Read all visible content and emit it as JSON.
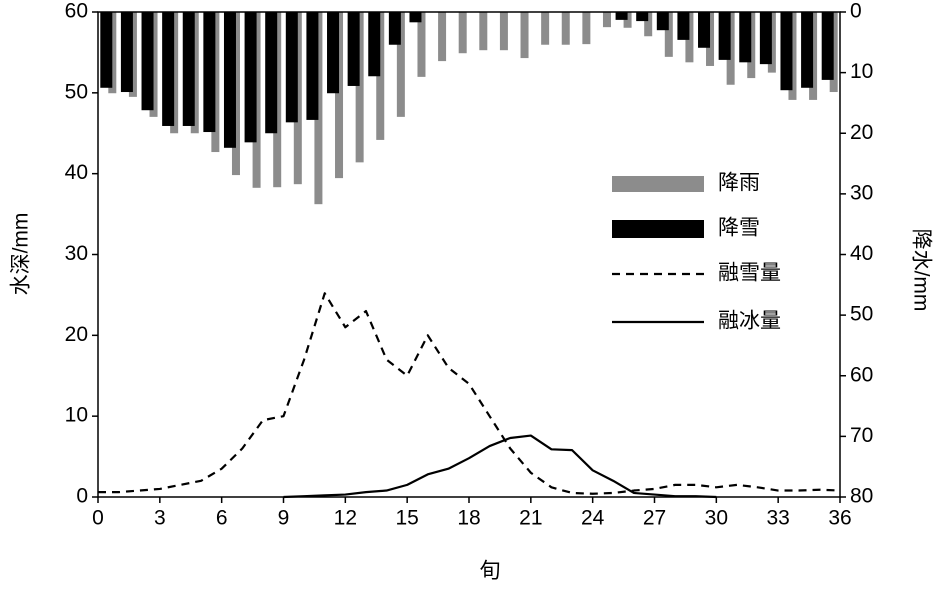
{
  "chart_data": {
    "type": "bar-line",
    "xlabel": "旬",
    "ylabel": "水深/mm",
    "y2label": "降水/mm",
    "xlim": [
      0,
      36
    ],
    "xticks": [
      0,
      3,
      6,
      9,
      12,
      15,
      18,
      21,
      24,
      27,
      30,
      33,
      36
    ],
    "ylim": [
      0,
      60
    ],
    "yticks": [
      0,
      10,
      20,
      30,
      40,
      50,
      60
    ],
    "y2lim": [
      0,
      80
    ],
    "y2ticks": [
      0,
      10,
      20,
      30,
      40,
      50,
      60,
      70,
      80
    ],
    "y2_inverted": true,
    "series": [
      {
        "name": "降雨",
        "type": "bar",
        "axis": "y2",
        "color": "#8c8c8c",
        "x": [
          0.5,
          1.5,
          2.5,
          3.5,
          4.5,
          5.5,
          6.5,
          7.5,
          8.5,
          9.5,
          10.5,
          11.5,
          12.5,
          13.5,
          14.5,
          15.5,
          16.5,
          17.5,
          18.5,
          19.5,
          20.5,
          21.5,
          22.5,
          23.5,
          24.5,
          25.5,
          26.5,
          27.5,
          28.5,
          29.5,
          30.5,
          31.5,
          32.5,
          33.5,
          34.5,
          35.5
        ],
        "values": [
          13.4,
          14,
          17.3,
          20,
          20,
          23.1,
          26.9,
          29,
          28.9,
          28.4,
          31.7,
          27.4,
          24.8,
          21.1,
          17.3,
          10.7,
          8.1,
          6.8,
          6.3,
          6.3,
          7.6,
          5.4,
          5.4,
          5.3,
          2.5,
          2.6,
          4,
          7.4,
          8.3,
          8.9,
          12,
          10.9,
          10,
          14.5,
          14.5,
          13.2
        ]
      },
      {
        "name": "降雪",
        "type": "bar",
        "axis": "y2",
        "color": "#000000",
        "x": [
          0.5,
          1.5,
          2.5,
          3.5,
          4.5,
          5.5,
          6.5,
          7.5,
          8.5,
          9.5,
          10.5,
          11.5,
          12.5,
          13.5,
          14.5,
          15.5,
          16.5,
          17.5,
          18.5,
          19.5,
          20.5,
          21.5,
          22.5,
          23.5,
          24.5,
          25.5,
          26.5,
          27.5,
          28.5,
          29.5,
          30.5,
          31.5,
          32.5,
          33.5,
          34.5,
          35.5
        ],
        "values": [
          12.5,
          13.2,
          16.2,
          18.8,
          18.8,
          19.8,
          22.4,
          21.5,
          20,
          18.2,
          17.8,
          13.4,
          12.2,
          10.6,
          5.4,
          1.7,
          0,
          0,
          0,
          0,
          0,
          0,
          0,
          0,
          0,
          1.3,
          1.5,
          3,
          4.6,
          5.9,
          7.9,
          8.3,
          8.6,
          12.9,
          12.5,
          11.2
        ]
      },
      {
        "name": "融雪量",
        "type": "line",
        "dash": "8 6",
        "color": "#000000",
        "x": [
          0,
          1,
          2,
          3,
          4,
          5,
          6,
          7,
          8,
          9,
          10,
          11,
          12,
          13,
          14,
          15,
          16,
          17,
          18,
          19,
          20,
          21,
          22,
          23,
          24,
          25,
          26,
          27,
          28,
          29,
          30,
          31,
          32,
          33,
          34,
          35,
          36
        ],
        "values": [
          0.6,
          0.6,
          0.8,
          1,
          1.5,
          2,
          3.5,
          6,
          9.5,
          10,
          17,
          25.2,
          21,
          23,
          17,
          15,
          20,
          16,
          14,
          10,
          6,
          3,
          1.2,
          0.5,
          0.4,
          0.5,
          0.8,
          1,
          1.5,
          1.5,
          1.2,
          1.5,
          1.2,
          0.8,
          0.8,
          0.9,
          0.8
        ]
      },
      {
        "name": "融冰量",
        "type": "line",
        "color": "#000000",
        "x": [
          9,
          10,
          11,
          12,
          13,
          14,
          15,
          16,
          17,
          18,
          19,
          20,
          21,
          22,
          23,
          24,
          25,
          26,
          27,
          28,
          29,
          30
        ],
        "values": [
          0,
          0.1,
          0.2,
          0.3,
          0.6,
          0.8,
          1.5,
          2.8,
          3.5,
          4.8,
          6.3,
          7.3,
          7.6,
          5.9,
          5.8,
          3.3,
          2,
          0.5,
          0.3,
          0.1,
          0.1,
          0
        ]
      }
    ]
  }
}
